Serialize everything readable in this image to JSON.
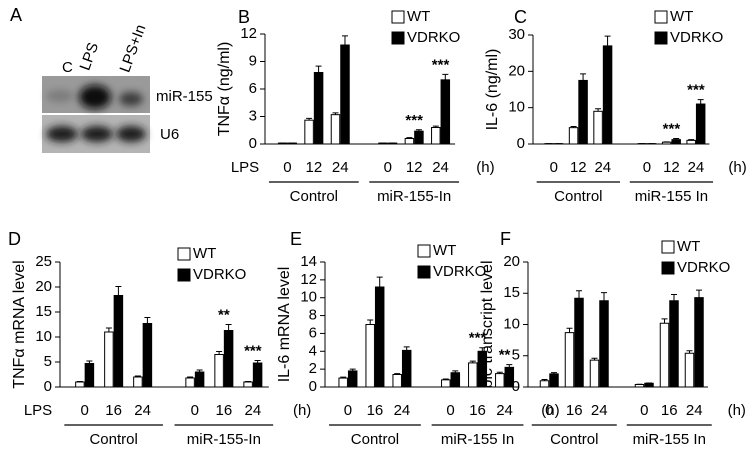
{
  "blot": {
    "panel": "A",
    "lanes": [
      "C",
      "LPS",
      "LPS+In"
    ],
    "bands": [
      "miR-155",
      "U6"
    ]
  },
  "chart_data": [
    {
      "type": "bar",
      "panel": "B",
      "y_label": "TNFα (ng/ml)",
      "x_row_label": "LPS",
      "x_unit": "(h)",
      "categories": [
        "0",
        "12",
        "24",
        "0",
        "12",
        "24"
      ],
      "groups": [
        "Control",
        "miR-155-In"
      ],
      "series": [
        {
          "name": "WT",
          "color": "#ffffff",
          "values": [
            0.1,
            2.6,
            3.2,
            0.1,
            0.6,
            1.8
          ],
          "errors": [
            0,
            0.2,
            0.2,
            0,
            0.1,
            0.15
          ]
        },
        {
          "name": "VDRKO",
          "color": "#000000",
          "values": [
            0.1,
            7.8,
            10.8,
            0.1,
            1.4,
            7.0
          ],
          "errors": [
            0,
            0.7,
            1.0,
            0,
            0.15,
            0.6
          ]
        }
      ],
      "significance": [
        null,
        null,
        null,
        null,
        "***",
        "***"
      ],
      "ylim": [
        0,
        12
      ],
      "yticks": [
        0,
        3,
        6,
        9,
        12
      ]
    },
    {
      "type": "bar",
      "panel": "C",
      "y_label": "IL-6 (ng/ml)",
      "x_unit": "(h)",
      "categories": [
        "0",
        "12",
        "24",
        "0",
        "12",
        "24"
      ],
      "groups": [
        "Control",
        "miR-155 In"
      ],
      "series": [
        {
          "name": "WT",
          "color": "#ffffff",
          "values": [
            0.1,
            4.5,
            9,
            0.1,
            0.5,
            1
          ],
          "errors": [
            0,
            0.3,
            0.7,
            0,
            0.1,
            0.2
          ]
        },
        {
          "name": "VDRKO",
          "color": "#000000",
          "values": [
            0.1,
            17.5,
            27,
            0.1,
            1.2,
            11
          ],
          "errors": [
            0,
            1.8,
            2.7,
            0,
            0.3,
            1.2
          ]
        }
      ],
      "significance": [
        null,
        null,
        null,
        null,
        "***",
        "***"
      ],
      "ylim": [
        0,
        30
      ],
      "yticks": [
        0,
        10,
        20,
        30
      ]
    },
    {
      "type": "bar",
      "panel": "D",
      "y_label": "TNFα mRNA level",
      "x_row_label": "LPS",
      "x_unit": "(h)",
      "categories": [
        "0",
        "16",
        "24",
        "0",
        "16",
        "24"
      ],
      "groups": [
        "Control",
        "miR-155-In"
      ],
      "series": [
        {
          "name": "WT",
          "color": "#ffffff",
          "values": [
            1,
            11,
            2,
            1.8,
            6.5,
            1
          ],
          "errors": [
            0.1,
            0.8,
            0.2,
            0.2,
            0.6,
            0.1
          ]
        },
        {
          "name": "VDRKO",
          "color": "#000000",
          "values": [
            4.7,
            18.3,
            12.7,
            3,
            11.3,
            4.8
          ],
          "errors": [
            0.5,
            1.8,
            1.2,
            0.4,
            1.2,
            0.5
          ]
        }
      ],
      "significance": [
        null,
        null,
        null,
        null,
        "**",
        "***"
      ],
      "ylim": [
        0,
        25
      ],
      "yticks": [
        0,
        5,
        10,
        15,
        20,
        25
      ]
    },
    {
      "type": "bar",
      "panel": "E",
      "y_label": "IL-6 mRNA level",
      "x_unit": "(h)",
      "categories": [
        "0",
        "16",
        "24",
        "0",
        "16",
        "24"
      ],
      "groups": [
        "Control",
        "miR-155 In"
      ],
      "series": [
        {
          "name": "WT",
          "color": "#ffffff",
          "values": [
            1,
            7,
            1.4,
            0.8,
            2.7,
            1.5
          ],
          "errors": [
            0.1,
            0.5,
            0.1,
            0.1,
            0.2,
            0.15
          ]
        },
        {
          "name": "VDRKO",
          "color": "#000000",
          "values": [
            1.8,
            11.2,
            4.1,
            1.6,
            4.0,
            2.2
          ],
          "errors": [
            0.2,
            1.1,
            0.4,
            0.2,
            0.4,
            0.3
          ]
        }
      ],
      "significance": [
        null,
        null,
        null,
        null,
        "***",
        "**"
      ],
      "ylim": [
        0,
        14
      ],
      "yticks": [
        0,
        2,
        4,
        6,
        8,
        10,
        12,
        14
      ]
    },
    {
      "type": "bar",
      "panel": "F",
      "y_label": "bic transcript level",
      "x_unit": "(h)",
      "categories": [
        "0",
        "16",
        "24",
        "0",
        "16",
        "24"
      ],
      "groups": [
        "Control",
        "miR-155 In"
      ],
      "series": [
        {
          "name": "WT",
          "color": "#ffffff",
          "values": [
            1,
            8.7,
            4.3,
            0.4,
            10.2,
            5.4
          ],
          "errors": [
            0.2,
            0.7,
            0.3,
            0.05,
            0.7,
            0.4
          ]
        },
        {
          "name": "VDRKO",
          "color": "#000000",
          "values": [
            2.1,
            14.2,
            13.8,
            0.6,
            13.8,
            14.3
          ],
          "errors": [
            0.2,
            1.2,
            1.3,
            0.05,
            1.0,
            1.2
          ]
        }
      ],
      "significance": [
        null,
        null,
        null,
        null,
        null,
        null
      ],
      "ylim": [
        0,
        20
      ],
      "yticks": [
        0,
        5,
        10,
        15,
        20
      ]
    }
  ]
}
